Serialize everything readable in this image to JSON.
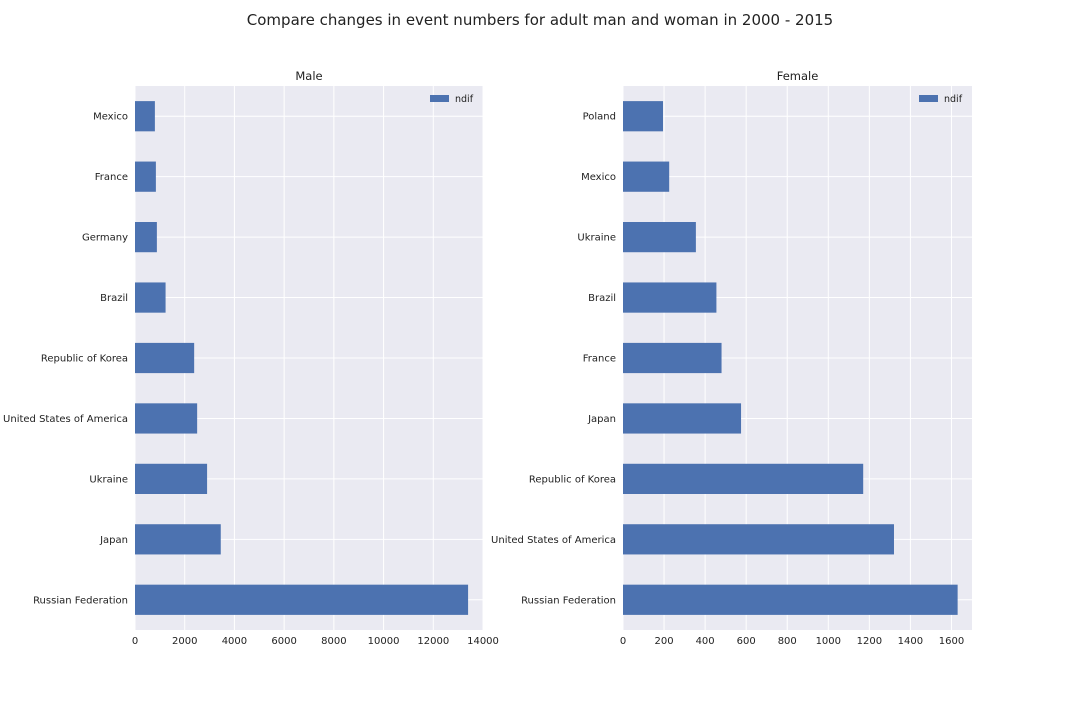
{
  "suptitle": "Compare changes in event numbers for adult man and woman in 2000 - 2015",
  "colors": {
    "bar": "#4c72b0",
    "axes_background": "#eaeaf2",
    "grid": "#ffffff"
  },
  "chart_data": [
    {
      "type": "bar",
      "orientation": "horizontal",
      "title": "Male",
      "categories": [
        "Russian Federation",
        "Japan",
        "Ukraine",
        "United States of America",
        "Republic of Korea",
        "Brazil",
        "Germany",
        "France",
        "Mexico"
      ],
      "series": [
        {
          "name": "ndif",
          "values": [
            13400,
            3450,
            2900,
            2500,
            2380,
            1230,
            880,
            840,
            800
          ]
        }
      ],
      "xlim": [
        0,
        14000
      ],
      "xticks": [
        0,
        2000,
        4000,
        6000,
        8000,
        10000,
        12000,
        14000
      ],
      "grid": true,
      "legend": "upper right"
    },
    {
      "type": "bar",
      "orientation": "horizontal",
      "title": "Female",
      "categories": [
        "Russian Federation",
        "United States of America",
        "Republic of Korea",
        "Japan",
        "France",
        "Brazil",
        "Ukraine",
        "Mexico",
        "Poland"
      ],
      "series": [
        {
          "name": "ndif",
          "values": [
            1630,
            1320,
            1170,
            575,
            480,
            455,
            355,
            225,
            195
          ]
        }
      ],
      "xlim": [
        0,
        1700
      ],
      "xticks": [
        0,
        200,
        400,
        600,
        800,
        1000,
        1200,
        1400,
        1600
      ],
      "grid": true,
      "legend": "upper right"
    }
  ]
}
